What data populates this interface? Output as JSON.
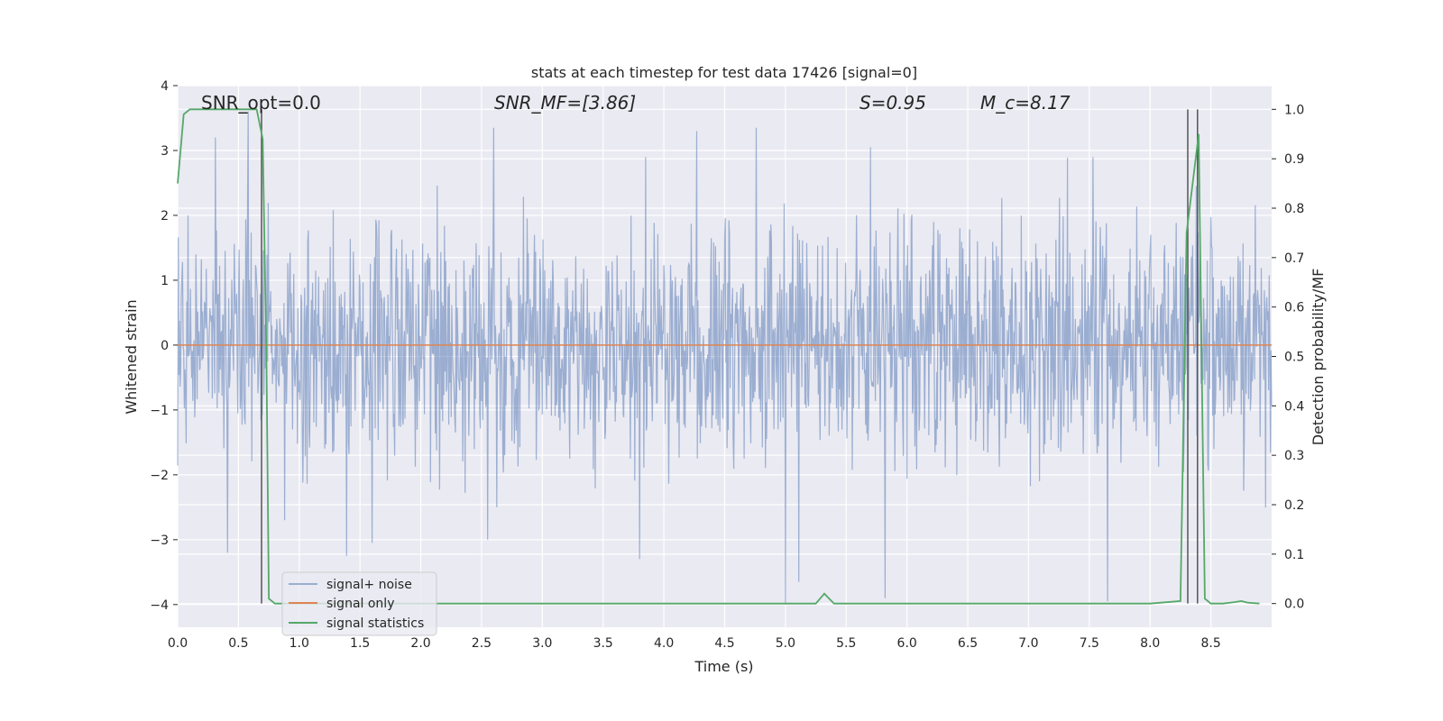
{
  "chart_data": {
    "type": "line",
    "title": "stats at each timestep for test data 17426 [signal=0]",
    "xlabel": "Time (s)",
    "ylabel": "Whitened strain",
    "y2label": "Detection probability/MF",
    "xlim": [
      0.0,
      9.0
    ],
    "ylim": [
      -4.35,
      4.0
    ],
    "y2lim": [
      -0.048,
      1.048
    ],
    "x_ticks": [
      "0.0",
      "0.5",
      "1.0",
      "1.5",
      "2.0",
      "2.5",
      "3.0",
      "3.5",
      "4.0",
      "4.5",
      "5.0",
      "5.5",
      "6.0",
      "6.5",
      "7.0",
      "7.5",
      "8.0",
      "8.5"
    ],
    "y_ticks": [
      "4",
      "3",
      "2",
      "1",
      "0",
      "−1",
      "−2",
      "−3",
      "−4"
    ],
    "y2_ticks": [
      "1.0",
      "0.9",
      "0.8",
      "0.7",
      "0.6",
      "0.5",
      "0.4",
      "0.3",
      "0.2",
      "0.1",
      "0.0"
    ],
    "grid": true,
    "legend_position": "lower-left",
    "annotations": {
      "snr_opt": "SNR_opt=0.0",
      "snr_mf": "SNR_MF=[3.86]",
      "s": "S=0.95",
      "mc": "M_c=8.17"
    },
    "series": [
      {
        "name": "signal+ noise",
        "color": "#4c72b0",
        "description": "whitened strain noise, roughly -2..2 with spikes",
        "peaks": [
          {
            "x": 0.58,
            "y": 3.6
          },
          {
            "x": 0.31,
            "y": 3.2
          },
          {
            "x": 2.6,
            "y": 3.35
          },
          {
            "x": 4.76,
            "y": 3.35
          },
          {
            "x": 4.27,
            "y": 3.3
          },
          {
            "x": 3.85,
            "y": 2.9
          },
          {
            "x": 5.7,
            "y": 3.05
          },
          {
            "x": 7.53,
            "y": 2.9
          },
          {
            "x": 0.41,
            "y": -3.2
          },
          {
            "x": 1.39,
            "y": -3.25
          },
          {
            "x": 1.6,
            "y": -3.05
          },
          {
            "x": 3.8,
            "y": -3.3
          },
          {
            "x": 5.0,
            "y": -4.0
          },
          {
            "x": 5.11,
            "y": -3.65
          },
          {
            "x": 5.82,
            "y": -3.9
          },
          {
            "x": 7.65,
            "y": -3.95
          },
          {
            "x": 2.55,
            "y": -3.0
          },
          {
            "x": 0.88,
            "y": -2.7
          }
        ]
      },
      {
        "name": "signal only",
        "color": "#dd8452",
        "x": [
          0.0,
          9.0
        ],
        "y": [
          0.0,
          0.0
        ]
      },
      {
        "name": "signal statistics",
        "color": "#55a868",
        "axis": "right",
        "x": [
          0.0,
          0.05,
          0.1,
          0.2,
          0.3,
          0.4,
          0.5,
          0.6,
          0.65,
          0.7,
          0.73,
          0.75,
          0.8,
          1.0,
          2.0,
          3.0,
          4.0,
          5.0,
          5.25,
          5.32,
          5.4,
          5.5,
          6.0,
          7.0,
          8.0,
          8.25,
          8.3,
          8.35,
          8.4,
          8.45,
          8.5,
          8.6,
          8.7,
          8.75,
          8.8,
          8.9
        ],
        "y": [
          0.85,
          0.99,
          1.0,
          1.0,
          1.0,
          1.0,
          1.0,
          1.0,
          1.0,
          0.94,
          0.5,
          0.01,
          0.0,
          0.0,
          0.0,
          0.0,
          0.0,
          0.0,
          0.0,
          0.02,
          0.0,
          0.0,
          0.0,
          0.0,
          0.0,
          0.005,
          0.75,
          0.85,
          0.95,
          0.01,
          0.0,
          0.0,
          0.003,
          0.005,
          0.002,
          0.0
        ]
      }
    ],
    "vlines": [
      0.69,
      8.31,
      8.39
    ],
    "vline_color": "#555555"
  },
  "legend": {
    "items": [
      {
        "label": "signal+ noise",
        "color": "#4c72b0"
      },
      {
        "label": "signal only",
        "color": "#dd8452"
      },
      {
        "label": "signal statistics",
        "color": "#55a868"
      }
    ]
  },
  "style": {
    "plot_bg": "#eaeaf2",
    "grid_color": "#ffffff",
    "noise_fill": "#9aaed0"
  }
}
